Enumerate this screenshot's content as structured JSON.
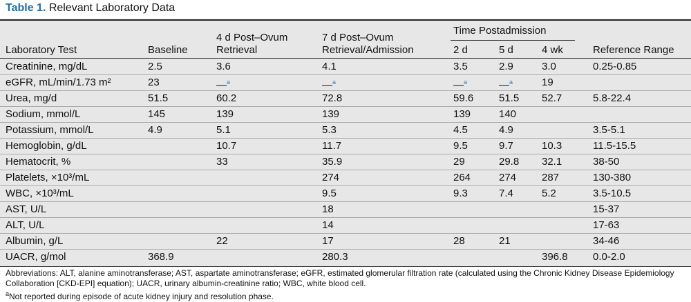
{
  "title": {
    "label": "Table 1.",
    "text": "Relevant Laboratory Data"
  },
  "table": {
    "group": "Time Postadmission",
    "columns": [
      [
        "Laboratory Test"
      ],
      [
        "Baseline"
      ],
      [
        "4 d Post–Ovum",
        "Retrieval"
      ],
      [
        "7 d Post–Ovum",
        "Retrieval/Admission"
      ],
      [
        "2 d"
      ],
      [
        "5 d"
      ],
      [
        "4 wk"
      ],
      [
        "Reference Range"
      ]
    ],
    "rows": [
      [
        "Creatinine, mg/dL",
        "2.5",
        "3.6",
        "4.1",
        "3.5",
        "2.9",
        "3.0",
        "0.25-0.85"
      ],
      [
        "eGFR, mL/min/1.73 m²",
        "23",
        {
          "text": "—",
          "note": "a"
        },
        {
          "text": "—",
          "note": "a"
        },
        {
          "text": "—",
          "note": "a"
        },
        {
          "text": "—",
          "note": "a"
        },
        "19",
        null
      ],
      [
        "Urea, mg/d",
        "51.5",
        "60.2",
        "72.8",
        "59.6",
        "51.5",
        "52.7",
        "5.8-22.4"
      ],
      [
        "Sodium, mmol/L",
        "145",
        "139",
        "139",
        "139",
        "140",
        null,
        null
      ],
      [
        "Potassium, mmol/L",
        "4.9",
        "5.1",
        "5.3",
        "4.5",
        "4.9",
        null,
        "3.5-5.1"
      ],
      [
        "Hemoglobin, g/dL",
        null,
        "10.7",
        "11.7",
        "9.5",
        "9.7",
        "10.3",
        "11.5-15.5"
      ],
      [
        "Hematocrit, %",
        null,
        "33",
        "35.9",
        "29",
        "29.8",
        "32.1",
        "38-50"
      ],
      [
        "Platelets, ×10³/mL",
        null,
        null,
        "274",
        "264",
        "274",
        "287",
        "130-380"
      ],
      [
        "WBC, ×10³/mL",
        null,
        null,
        "9.5",
        "9.3",
        "7.4",
        "5.2",
        "3.5-10.5"
      ],
      [
        "AST, U/L",
        null,
        null,
        "18",
        null,
        null,
        null,
        "15-37"
      ],
      [
        "ALT, U/L",
        null,
        null,
        "14",
        null,
        null,
        null,
        "17-63"
      ],
      [
        "Albumin, g/L",
        null,
        "22",
        "17",
        "28",
        "21",
        null,
        "34-46"
      ],
      [
        "UACR, g/mol",
        "368.9",
        null,
        "280.3",
        null,
        null,
        "396.8",
        "0.0-2.0"
      ]
    ]
  },
  "footnotes": {
    "abbreviations": "Abbreviations: ALT, alanine aminotransferase; AST, aspartate aminotransferase; eGFR, estimated glomerular filtration rate (calculated using the Chronic Kidney Disease Epidemiology Collaboration [CKD-EPI] equation); UACR, urinary albumin-creatinine ratio; WBC, white blood cell.",
    "note": {
      "mark": "a",
      "text": "Not reported during episode of acute kidney injury and resolution phase."
    }
  }
}
